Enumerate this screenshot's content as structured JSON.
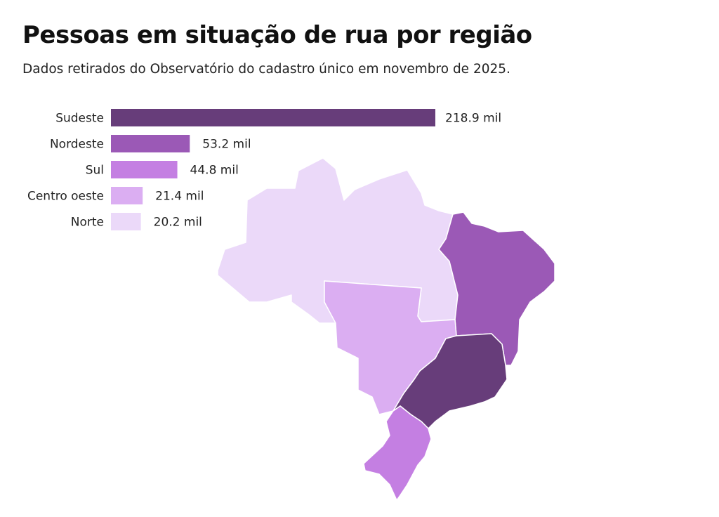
{
  "header": {
    "title": "Pessoas em situação de rua por região",
    "subtitle": "Dados retirados do Observatório do cadastro único em novembro de 2025."
  },
  "chart_data": {
    "type": "bar",
    "orientation": "horizontal",
    "title": "Pessoas em situação de rua por região",
    "subtitle": "Dados retirados do Observatório do cadastro único em novembro de 2025.",
    "categories": [
      "Sudeste",
      "Nordeste",
      "Sul",
      "Centro oeste",
      "Norte"
    ],
    "values": [
      218.9,
      53.2,
      44.8,
      21.4,
      20.2
    ],
    "value_labels": [
      "218.9 mil",
      "53.2 mil",
      "44.8 mil",
      "21.4 mil",
      "20.2 mil"
    ],
    "units": "mil",
    "colors": [
      "#673d7a",
      "#9b59b6",
      "#c47fe2",
      "#dbaef2",
      "#ebd9f9"
    ],
    "xlim": [
      0,
      218.9
    ],
    "grid": false
  }
}
